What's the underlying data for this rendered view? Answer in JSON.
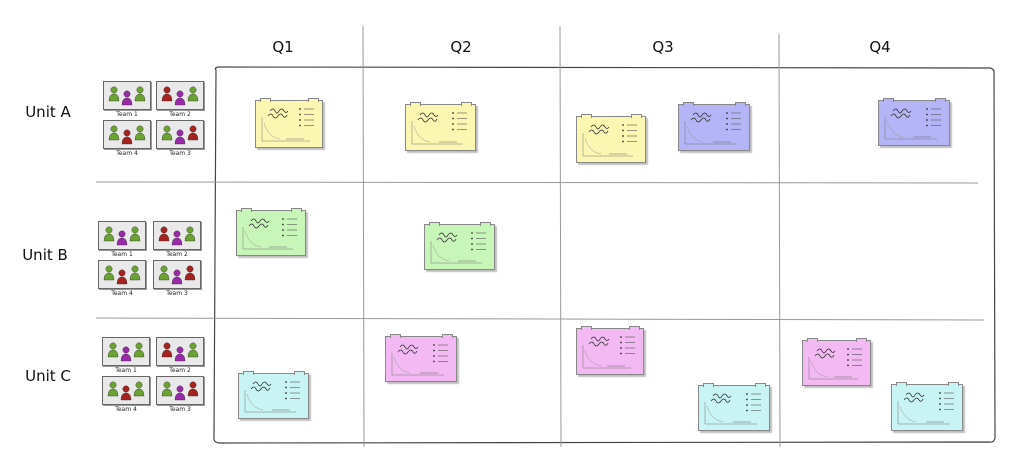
{
  "columns": [
    "Q1",
    "Q2",
    "Q3",
    "Q4"
  ],
  "rows": [
    {
      "label": "Unit A",
      "teams": [
        "Team 1",
        "Team 2",
        "Team 4",
        "Team 3"
      ]
    },
    {
      "label": "Unit B",
      "teams": [
        "Team 1",
        "Team 2",
        "Team 4",
        "Team 3"
      ]
    },
    {
      "label": "Unit C",
      "teams": [
        "Team 1",
        "Team 2",
        "Team 4",
        "Team 3"
      ]
    }
  ],
  "colors": {
    "yellow": "#fbf7b2",
    "blue": "#b4b4f6",
    "green": "#c8f5b8",
    "pink": "#f2b9f2",
    "cyan": "#c8f4f4",
    "person_green": "#6aa332",
    "person_purple": "#9a2aa8",
    "person_red": "#a5221f"
  },
  "cards": [
    {
      "row": 0,
      "col": 0,
      "color": "yellow"
    },
    {
      "row": 0,
      "col": 1,
      "color": "yellow"
    },
    {
      "row": 0,
      "col": 2,
      "color": "yellow"
    },
    {
      "row": 0,
      "col": 2,
      "color": "blue"
    },
    {
      "row": 0,
      "col": 3,
      "color": "blue"
    },
    {
      "row": 1,
      "col": 0,
      "color": "green"
    },
    {
      "row": 1,
      "col": 1,
      "color": "green"
    },
    {
      "row": 2,
      "col": 0,
      "color": "cyan"
    },
    {
      "row": 2,
      "col": 1,
      "color": "pink"
    },
    {
      "row": 2,
      "col": 2,
      "color": "pink"
    },
    {
      "row": 2,
      "col": 2,
      "color": "cyan"
    },
    {
      "row": 2,
      "col": 3,
      "color": "pink"
    },
    {
      "row": 2,
      "col": 3,
      "color": "cyan"
    }
  ]
}
